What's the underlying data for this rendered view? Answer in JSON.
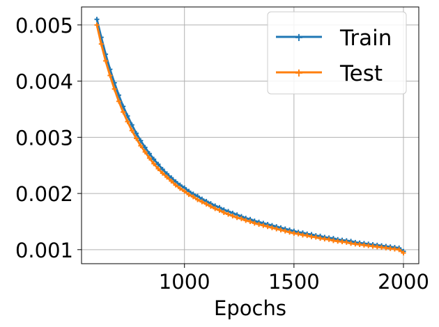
{
  "chart_data": {
    "type": "line",
    "xlabel": "Epochs",
    "ylabel": "",
    "xlim": [
      530,
      2070
    ],
    "ylim": [
      0.00075,
      0.00532
    ],
    "xticks": [
      1000,
      1500,
      2000
    ],
    "xtick_labels": [
      "1000",
      "1500",
      "2000"
    ],
    "yticks": [
      0.001,
      0.002,
      0.003,
      0.004,
      0.005
    ],
    "ytick_labels": [
      "0.001",
      "0.002",
      "0.003",
      "0.004",
      "0.005"
    ],
    "grid": true,
    "legend": "top-right",
    "x": [
      600,
      620,
      640,
      660,
      680,
      700,
      720,
      740,
      760,
      780,
      800,
      820,
      840,
      860,
      880,
      900,
      920,
      940,
      960,
      980,
      1000,
      1020,
      1040,
      1060,
      1080,
      1100,
      1120,
      1140,
      1160,
      1180,
      1200,
      1220,
      1240,
      1260,
      1280,
      1300,
      1320,
      1340,
      1360,
      1380,
      1400,
      1420,
      1440,
      1460,
      1480,
      1500,
      1520,
      1540,
      1560,
      1580,
      1600,
      1620,
      1640,
      1660,
      1680,
      1700,
      1720,
      1740,
      1760,
      1780,
      1800,
      1820,
      1840,
      1860,
      1880,
      1900,
      1920,
      1940,
      1960,
      1980,
      2000
    ],
    "series": [
      {
        "name": "Train",
        "color": "#1f77b4",
        "marker": "plus",
        "values": [
          0.0051,
          0.00478,
          0.00448,
          0.00421,
          0.00397,
          0.00375,
          0.00355,
          0.00338,
          0.00322,
          0.00307,
          0.00294,
          0.00282,
          0.00271,
          0.00261,
          0.00252,
          0.00243,
          0.00235,
          0.00228,
          0.00221,
          0.00215,
          0.0021,
          0.00204,
          0.00199,
          0.00195,
          0.0019,
          0.00186,
          0.00182,
          0.00178,
          0.00175,
          0.00171,
          0.00168,
          0.00165,
          0.00162,
          0.00159,
          0.00156,
          0.00154,
          0.00151,
          0.00149,
          0.00147,
          0.00145,
          0.00143,
          0.00141,
          0.00139,
          0.00137,
          0.00135,
          0.00133,
          0.00131,
          0.0013,
          0.00128,
          0.00127,
          0.00125,
          0.00124,
          0.00122,
          0.00121,
          0.0012,
          0.00118,
          0.00117,
          0.00116,
          0.00115,
          0.00113,
          0.00112,
          0.00111,
          0.0011,
          0.00109,
          0.00108,
          0.00107,
          0.00106,
          0.00105,
          0.00104,
          0.00103,
          0.00097
        ]
      },
      {
        "name": "Test",
        "color": "#ff7f0e",
        "marker": "plus",
        "values": [
          0.005,
          0.00466,
          0.00436,
          0.0041,
          0.00386,
          0.00364,
          0.00345,
          0.00328,
          0.00312,
          0.00298,
          0.00285,
          0.00274,
          0.00263,
          0.00253,
          0.00244,
          0.00236,
          0.00229,
          0.00222,
          0.00215,
          0.00209,
          0.00204,
          0.00198,
          0.00194,
          0.00189,
          0.00185,
          0.00181,
          0.00177,
          0.00173,
          0.0017,
          0.00166,
          0.00163,
          0.0016,
          0.00157,
          0.00155,
          0.00152,
          0.0015,
          0.00147,
          0.00145,
          0.00143,
          0.00141,
          0.00139,
          0.00137,
          0.00135,
          0.00133,
          0.00131,
          0.00129,
          0.00128,
          0.00126,
          0.00125,
          0.00123,
          0.00122,
          0.0012,
          0.00119,
          0.00118,
          0.00116,
          0.00115,
          0.00114,
          0.00113,
          0.00111,
          0.0011,
          0.00109,
          0.00108,
          0.00107,
          0.00106,
          0.00105,
          0.00104,
          0.00103,
          0.00102,
          0.00101,
          0.001,
          0.00094
        ]
      }
    ]
  }
}
